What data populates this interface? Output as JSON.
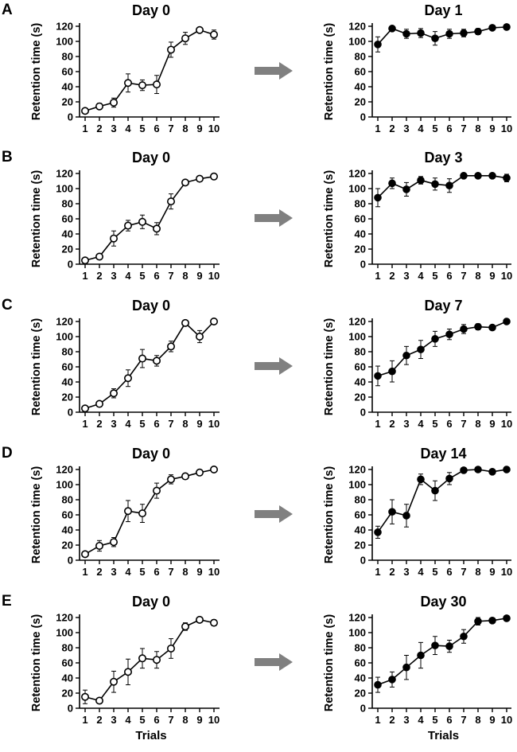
{
  "figure": {
    "x_axis_label": "Trials",
    "y_axis_label": "Retention time (s)",
    "arrow_color": "#808080",
    "line_color": "#000000",
    "open_marker_fill": "#ffffff",
    "filled_marker_fill": "#000000"
  },
  "panels": [
    {
      "letter": "A",
      "before": {
        "title": "Day 0",
        "values": [
          8,
          14,
          19,
          45,
          42,
          43,
          89,
          104,
          115,
          109
        ],
        "errors": [
          3,
          4,
          6,
          12,
          7,
          12,
          10,
          8,
          3,
          6
        ]
      },
      "after": {
        "title": "Day 1",
        "values": [
          96,
          117,
          110,
          111,
          104,
          110,
          111,
          113,
          118,
          119
        ],
        "errors": [
          10,
          2,
          6,
          6,
          9,
          6,
          5,
          4,
          2,
          2
        ]
      }
    },
    {
      "letter": "B",
      "before": {
        "title": "Day 0",
        "values": [
          5,
          10,
          34,
          51,
          56,
          47,
          83,
          108,
          113,
          116
        ],
        "errors": [
          2,
          3,
          10,
          7,
          9,
          8,
          10,
          3,
          3,
          2
        ]
      },
      "after": {
        "title": "Day 3",
        "values": [
          88,
          107,
          99,
          111,
          106,
          104,
          117,
          117,
          117,
          114
        ],
        "errors": [
          12,
          7,
          9,
          5,
          8,
          9,
          2,
          2,
          2,
          5
        ]
      }
    },
    {
      "letter": "C",
      "before": {
        "title": "Day 0",
        "values": [
          5,
          11,
          25,
          45,
          71,
          68,
          87,
          118,
          100,
          120
        ],
        "errors": [
          2,
          3,
          6,
          11,
          12,
          7,
          7,
          2,
          8,
          0
        ]
      },
      "after": {
        "title": "Day 7",
        "values": [
          48,
          54,
          75,
          83,
          97,
          103,
          110,
          113,
          112,
          120
        ],
        "errors": [
          13,
          14,
          12,
          12,
          10,
          7,
          6,
          4,
          3,
          0
        ]
      }
    },
    {
      "letter": "D",
      "before": {
        "title": "Day 0",
        "values": [
          8,
          19,
          24,
          65,
          62,
          92,
          107,
          111,
          116,
          120
        ],
        "errors": [
          3,
          7,
          6,
          14,
          12,
          10,
          6,
          3,
          2,
          0
        ]
      },
      "after": {
        "title": "Day 14",
        "values": [
          37,
          64,
          59,
          107,
          92,
          108,
          119,
          120,
          117,
          120
        ],
        "errors": [
          8,
          16,
          15,
          7,
          13,
          8,
          2,
          0,
          2,
          0
        ]
      }
    },
    {
      "letter": "E",
      "before": {
        "title": "Day 0",
        "values": [
          15,
          10,
          35,
          48,
          66,
          64,
          79,
          108,
          117,
          113
        ],
        "errors": [
          9,
          3,
          14,
          17,
          13,
          11,
          13,
          5,
          2,
          4
        ]
      },
      "after": {
        "title": "Day 30",
        "values": [
          31,
          38,
          54,
          70,
          83,
          82,
          95,
          115,
          116,
          119
        ],
        "errors": [
          10,
          10,
          16,
          17,
          12,
          8,
          9,
          5,
          3,
          2
        ]
      }
    }
  ],
  "chart_data": [
    {
      "type": "line",
      "panel": "A",
      "title": "Day 0",
      "xlabel": "",
      "ylabel": "Retention time (s)",
      "x": [
        1,
        2,
        3,
        4,
        5,
        6,
        7,
        8,
        9,
        10
      ],
      "series": [
        {
          "values": [
            8,
            14,
            19,
            45,
            42,
            43,
            89,
            104,
            115,
            109
          ],
          "errors": [
            3,
            4,
            6,
            12,
            7,
            12,
            10,
            8,
            3,
            6
          ],
          "marker": "open-circle"
        }
      ],
      "xlim": [
        1,
        10
      ],
      "ylim": [
        0,
        120
      ],
      "yticks": [
        0,
        20,
        40,
        60,
        80,
        100,
        120
      ],
      "grid": false
    },
    {
      "type": "line",
      "panel": "A",
      "title": "Day 1",
      "xlabel": "",
      "ylabel": "Retention time (s)",
      "x": [
        1,
        2,
        3,
        4,
        5,
        6,
        7,
        8,
        9,
        10
      ],
      "series": [
        {
          "values": [
            96,
            117,
            110,
            111,
            104,
            110,
            111,
            113,
            118,
            119
          ],
          "errors": [
            10,
            2,
            6,
            6,
            9,
            6,
            5,
            4,
            2,
            2
          ],
          "marker": "filled-circle"
        }
      ],
      "xlim": [
        1,
        10
      ],
      "ylim": [
        0,
        120
      ],
      "yticks": [
        0,
        20,
        40,
        60,
        80,
        100,
        120
      ],
      "grid": false
    },
    {
      "type": "line",
      "panel": "B",
      "title": "Day 0",
      "xlabel": "",
      "ylabel": "Retention time (s)",
      "x": [
        1,
        2,
        3,
        4,
        5,
        6,
        7,
        8,
        9,
        10
      ],
      "series": [
        {
          "values": [
            5,
            10,
            34,
            51,
            56,
            47,
            83,
            108,
            113,
            116
          ],
          "errors": [
            2,
            3,
            10,
            7,
            9,
            8,
            10,
            3,
            3,
            2
          ],
          "marker": "open-circle"
        }
      ],
      "xlim": [
        1,
        10
      ],
      "ylim": [
        0,
        120
      ],
      "yticks": [
        0,
        20,
        40,
        60,
        80,
        100,
        120
      ],
      "grid": false
    },
    {
      "type": "line",
      "panel": "B",
      "title": "Day 3",
      "xlabel": "",
      "ylabel": "Retention time (s)",
      "x": [
        1,
        2,
        3,
        4,
        5,
        6,
        7,
        8,
        9,
        10
      ],
      "series": [
        {
          "values": [
            88,
            107,
            99,
            111,
            106,
            104,
            117,
            117,
            117,
            114
          ],
          "errors": [
            12,
            7,
            9,
            5,
            8,
            9,
            2,
            2,
            2,
            5
          ],
          "marker": "filled-circle"
        }
      ],
      "xlim": [
        1,
        10
      ],
      "ylim": [
        0,
        120
      ],
      "yticks": [
        0,
        20,
        40,
        60,
        80,
        100,
        120
      ],
      "grid": false
    },
    {
      "type": "line",
      "panel": "C",
      "title": "Day 0",
      "xlabel": "",
      "ylabel": "Retention time (s)",
      "x": [
        1,
        2,
        3,
        4,
        5,
        6,
        7,
        8,
        9,
        10
      ],
      "series": [
        {
          "values": [
            5,
            11,
            25,
            45,
            71,
            68,
            87,
            118,
            100,
            120
          ],
          "errors": [
            2,
            3,
            6,
            11,
            12,
            7,
            7,
            2,
            8,
            0
          ],
          "marker": "open-circle"
        }
      ],
      "xlim": [
        1,
        10
      ],
      "ylim": [
        0,
        120
      ],
      "yticks": [
        0,
        20,
        40,
        60,
        80,
        100,
        120
      ],
      "grid": false
    },
    {
      "type": "line",
      "panel": "C",
      "title": "Day 7",
      "xlabel": "",
      "ylabel": "Retention time (s)",
      "x": [
        1,
        2,
        3,
        4,
        5,
        6,
        7,
        8,
        9,
        10
      ],
      "series": [
        {
          "values": [
            48,
            54,
            75,
            83,
            97,
            103,
            110,
            113,
            112,
            120
          ],
          "errors": [
            13,
            14,
            12,
            12,
            10,
            7,
            6,
            4,
            3,
            0
          ],
          "marker": "filled-circle"
        }
      ],
      "xlim": [
        1,
        10
      ],
      "ylim": [
        0,
        120
      ],
      "yticks": [
        0,
        20,
        40,
        60,
        80,
        100,
        120
      ],
      "grid": false
    },
    {
      "type": "line",
      "panel": "D",
      "title": "Day 0",
      "xlabel": "",
      "ylabel": "Retention time (s)",
      "x": [
        1,
        2,
        3,
        4,
        5,
        6,
        7,
        8,
        9,
        10
      ],
      "series": [
        {
          "values": [
            8,
            19,
            24,
            65,
            62,
            92,
            107,
            111,
            116,
            120
          ],
          "errors": [
            3,
            7,
            6,
            14,
            12,
            10,
            6,
            3,
            2,
            0
          ],
          "marker": "open-circle"
        }
      ],
      "xlim": [
        1,
        10
      ],
      "ylim": [
        0,
        120
      ],
      "yticks": [
        0,
        20,
        40,
        60,
        80,
        100,
        120
      ],
      "grid": false
    },
    {
      "type": "line",
      "panel": "D",
      "title": "Day 14",
      "xlabel": "",
      "ylabel": "Retention time (s)",
      "x": [
        1,
        2,
        3,
        4,
        5,
        6,
        7,
        8,
        9,
        10
      ],
      "series": [
        {
          "values": [
            37,
            64,
            59,
            107,
            92,
            108,
            119,
            120,
            117,
            120
          ],
          "errors": [
            8,
            16,
            15,
            7,
            13,
            8,
            2,
            0,
            2,
            0
          ],
          "marker": "filled-circle"
        }
      ],
      "xlim": [
        1,
        10
      ],
      "ylim": [
        0,
        120
      ],
      "yticks": [
        0,
        20,
        40,
        60,
        80,
        100,
        120
      ],
      "grid": false
    },
    {
      "type": "line",
      "panel": "E",
      "title": "Day 0",
      "xlabel": "Trials",
      "ylabel": "Retention time (s)",
      "x": [
        1,
        2,
        3,
        4,
        5,
        6,
        7,
        8,
        9,
        10
      ],
      "series": [
        {
          "values": [
            15,
            10,
            35,
            48,
            66,
            64,
            79,
            108,
            117,
            113
          ],
          "errors": [
            9,
            3,
            14,
            17,
            13,
            11,
            13,
            5,
            2,
            4
          ],
          "marker": "open-circle"
        }
      ],
      "xlim": [
        1,
        10
      ],
      "ylim": [
        0,
        120
      ],
      "yticks": [
        0,
        20,
        40,
        60,
        80,
        100,
        120
      ],
      "grid": false
    },
    {
      "type": "line",
      "panel": "E",
      "title": "Day 30",
      "xlabel": "Trials",
      "ylabel": "Retention time (s)",
      "x": [
        1,
        2,
        3,
        4,
        5,
        6,
        7,
        8,
        9,
        10
      ],
      "series": [
        {
          "values": [
            31,
            38,
            54,
            70,
            83,
            82,
            95,
            115,
            116,
            119
          ],
          "errors": [
            10,
            10,
            16,
            17,
            12,
            8,
            9,
            5,
            3,
            2
          ],
          "marker": "filled-circle"
        }
      ],
      "xlim": [
        1,
        10
      ],
      "ylim": [
        0,
        120
      ],
      "yticks": [
        0,
        20,
        40,
        60,
        80,
        100,
        120
      ],
      "grid": false
    }
  ]
}
